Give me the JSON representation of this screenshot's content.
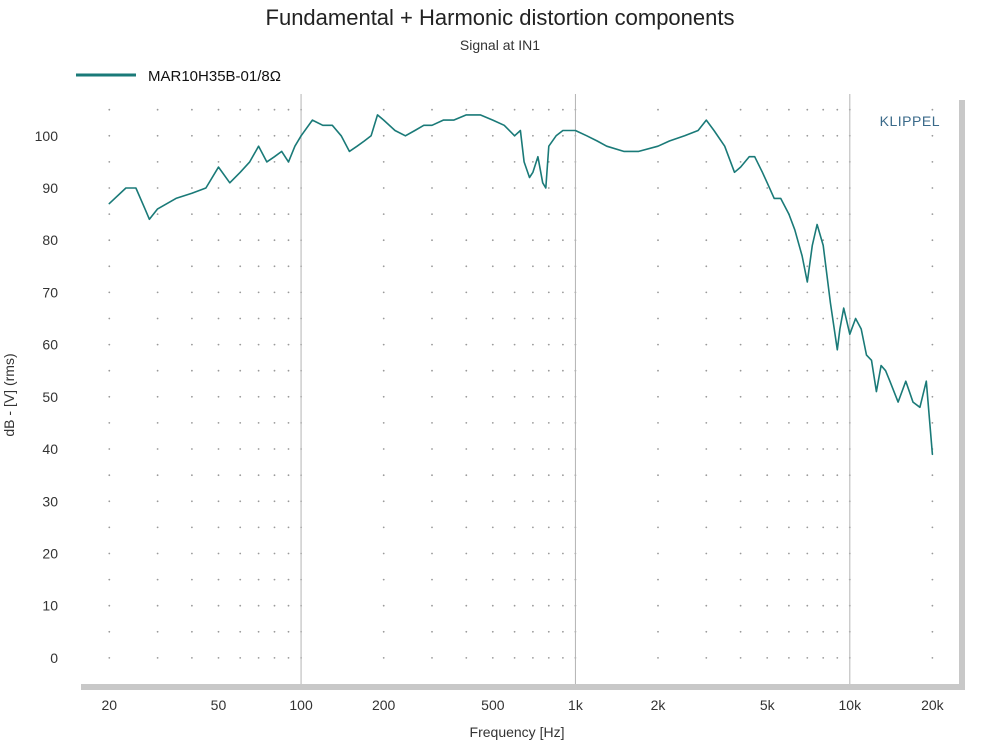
{
  "chart_data": {
    "type": "line",
    "title": "Fundamental + Harmonic distortion components",
    "subtitle": "Signal at IN1",
    "xlabel": "Frequency [Hz]",
    "ylabel": "dB - [V]  (rms)",
    "x_scale": "log",
    "xlim": [
      15,
      25000
    ],
    "ylim": [
      -5,
      108
    ],
    "x_ticks": [
      20,
      50,
      100,
      200,
      500,
      1000,
      2000,
      5000,
      10000,
      20000
    ],
    "x_tick_labels": [
      "20",
      "50",
      "100",
      "200",
      "500",
      "1k",
      "2k",
      "5k",
      "10k",
      "20k"
    ],
    "y_ticks": [
      0,
      10,
      20,
      30,
      40,
      50,
      60,
      70,
      80,
      90,
      100
    ],
    "y_tick_labels": [
      "0",
      "10",
      "20",
      "30",
      "40",
      "50",
      "60",
      "70",
      "80",
      "90",
      "100"
    ],
    "grid": "major vertical lines at decades, dotted minor grid",
    "legend_position": "top-left",
    "brand": "KLIPPEL",
    "series": [
      {
        "name": "MAR10H35B-01/8Ω",
        "color": "#1a7a78",
        "x": [
          20,
          23,
          25,
          27,
          28,
          30,
          35,
          40,
          45,
          50,
          55,
          60,
          65,
          70,
          75,
          80,
          85,
          90,
          95,
          100,
          110,
          120,
          130,
          140,
          150,
          160,
          170,
          180,
          190,
          200,
          220,
          240,
          260,
          280,
          300,
          330,
          360,
          400,
          450,
          500,
          550,
          600,
          630,
          650,
          680,
          700,
          730,
          760,
          780,
          800,
          850,
          900,
          1000,
          1100,
          1200,
          1300,
          1500,
          1700,
          2000,
          2200,
          2500,
          2800,
          3000,
          3200,
          3500,
          3800,
          4000,
          4300,
          4500,
          4800,
          5000,
          5300,
          5600,
          6000,
          6300,
          6700,
          7000,
          7300,
          7600,
          8000,
          8500,
          9000,
          9200,
          9500,
          10000,
          10500,
          11000,
          11500,
          12000,
          12500,
          13000,
          13500,
          14000,
          15000,
          16000,
          17000,
          18000,
          19000,
          20000
        ],
        "values": [
          87,
          90,
          90,
          86,
          84,
          86,
          88,
          89,
          90,
          94,
          91,
          93,
          95,
          98,
          95,
          96,
          97,
          95,
          98,
          100,
          103,
          102,
          102,
          100,
          97,
          98,
          99,
          100,
          104,
          103,
          101,
          100,
          101,
          102,
          102,
          103,
          103,
          104,
          104,
          103,
          102,
          100,
          101,
          95,
          92,
          93,
          96,
          91,
          90,
          98,
          100,
          101,
          101,
          100,
          99,
          98,
          97,
          97,
          98,
          99,
          100,
          101,
          103,
          101,
          98,
          93,
          94,
          96,
          96,
          93,
          91,
          88,
          88,
          85,
          82,
          77,
          72,
          79,
          83,
          79,
          68,
          59,
          63,
          67,
          62,
          65,
          63,
          58,
          57,
          51,
          56,
          55,
          53,
          49,
          53,
          49,
          48,
          53,
          39
        ]
      }
    ]
  }
}
